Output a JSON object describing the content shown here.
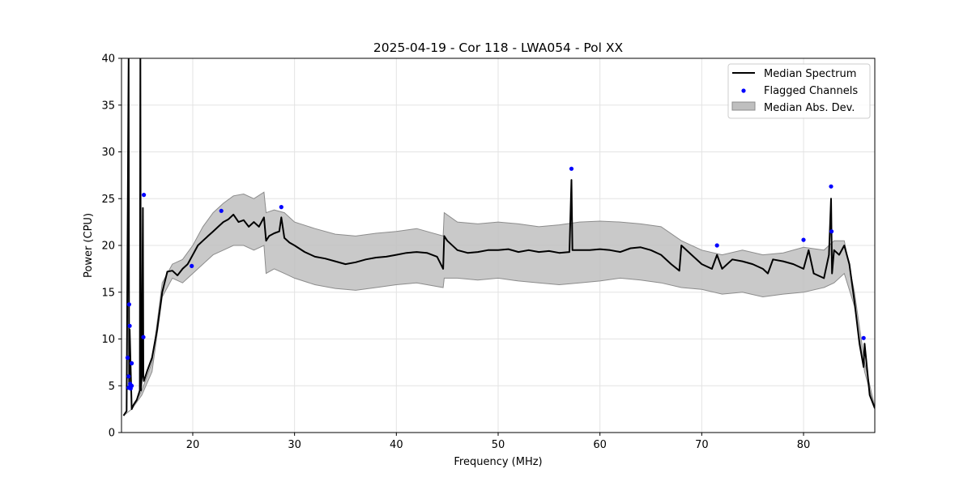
{
  "chart_data": {
    "type": "line",
    "title": "2025-04-19 - Cor 118 - LWA054 - Pol XX",
    "xlabel": "Frequency (MHz)",
    "ylabel": "Power (CPU)",
    "xlim": [
      13,
      87
    ],
    "ylim": [
      0,
      40
    ],
    "xticks": [
      20,
      30,
      40,
      50,
      60,
      70,
      80
    ],
    "yticks": [
      0,
      5,
      10,
      15,
      20,
      25,
      30,
      35,
      40
    ],
    "grid": true,
    "legend_position": "top-right",
    "legend": [
      "Median Spectrum",
      "Flagged Channels",
      "Median Abs. Dev."
    ],
    "colors": {
      "median": "#000000",
      "flagged": "#0000ff",
      "band_fill": "#bfbfbf",
      "band_edge": "#8c8c8c"
    },
    "series": [
      {
        "name": "Median Spectrum",
        "x": [
          13.2,
          13.5,
          13.7,
          13.75,
          13.8,
          14.0,
          14.2,
          14.5,
          14.8,
          14.85,
          14.9,
          15.0,
          15.1,
          15.15,
          15.2,
          15.5,
          16.0,
          16.5,
          17.0,
          17.5,
          18.0,
          18.5,
          19.0,
          19.5,
          20.0,
          20.5,
          21.0,
          21.5,
          22.0,
          22.5,
          23.0,
          23.5,
          24.0,
          24.5,
          25.0,
          25.5,
          26.0,
          26.5,
          27.0,
          27.2,
          27.5,
          28.0,
          28.5,
          28.7,
          29.0,
          29.5,
          30.0,
          31.0,
          32.0,
          33.0,
          34.0,
          35.0,
          36.0,
          37.0,
          38.0,
          39.0,
          40.0,
          41.0,
          42.0,
          43.0,
          44.0,
          44.6,
          44.7,
          45.0,
          46.0,
          47.0,
          48.0,
          49.0,
          50.0,
          51.0,
          52.0,
          53.0,
          54.0,
          55.0,
          56.0,
          57.0,
          57.2,
          57.3,
          58.0,
          59.0,
          60.0,
          61.0,
          62.0,
          63.0,
          64.0,
          65.0,
          66.0,
          67.0,
          67.8,
          68.0,
          69.0,
          70.0,
          71.0,
          71.5,
          72.0,
          73.0,
          74.0,
          75.0,
          76.0,
          76.5,
          77.0,
          78.0,
          79.0,
          80.0,
          80.5,
          81.0,
          82.0,
          82.5,
          82.7,
          82.8,
          83.0,
          83.5,
          84.0,
          84.5,
          85.0,
          85.5,
          85.9,
          86.0,
          86.5,
          87.0
        ],
        "y": [
          1.8,
          2.3,
          40,
          5.0,
          11,
          2.5,
          3.0,
          3.5,
          4.5,
          40,
          4.5,
          6.0,
          24,
          6.0,
          5.5,
          6.5,
          8.0,
          11.0,
          15.0,
          17.2,
          17.3,
          16.8,
          17.5,
          18.0,
          19.0,
          20.0,
          20.5,
          21.0,
          21.5,
          22.0,
          22.5,
          22.8,
          23.3,
          22.5,
          22.7,
          22.0,
          22.5,
          22.0,
          23.0,
          20.5,
          21.0,
          21.3,
          21.5,
          23.0,
          20.8,
          20.3,
          20.0,
          19.3,
          18.8,
          18.6,
          18.3,
          18.0,
          18.2,
          18.5,
          18.7,
          18.8,
          19.0,
          19.2,
          19.3,
          19.2,
          18.8,
          17.5,
          21.0,
          20.5,
          19.5,
          19.2,
          19.3,
          19.5,
          19.5,
          19.6,
          19.3,
          19.5,
          19.3,
          19.4,
          19.2,
          19.3,
          27.0,
          19.5,
          19.5,
          19.5,
          19.6,
          19.5,
          19.3,
          19.7,
          19.8,
          19.5,
          19.0,
          18.0,
          17.3,
          20.0,
          19.0,
          18.0,
          17.5,
          19.0,
          17.5,
          18.5,
          18.3,
          18.0,
          17.5,
          17.0,
          18.5,
          18.3,
          18.0,
          17.5,
          19.5,
          17.0,
          16.5,
          19.0,
          25.0,
          17.0,
          19.5,
          19.0,
          20.0,
          18.0,
          14.0,
          9.5,
          7.0,
          9.5,
          4.0,
          2.6
        ]
      },
      {
        "name": "Median Abs. Dev.",
        "x": [
          13.2,
          14.0,
          15.0,
          16.0,
          17.0,
          18.0,
          19.0,
          20.0,
          21.0,
          22.0,
          23.0,
          24.0,
          25.0,
          26.0,
          27.0,
          27.2,
          28.0,
          29.0,
          30.0,
          32.0,
          34.0,
          36.0,
          38.0,
          40.0,
          42.0,
          44.6,
          44.7,
          46.0,
          48.0,
          50.0,
          52.0,
          54.0,
          56.0,
          58.0,
          60.0,
          62.0,
          64.0,
          66.0,
          68.0,
          70.0,
          72.0,
          74.0,
          76.0,
          78.0,
          80.0,
          82.0,
          83.0,
          84.0,
          85.0,
          86.0,
          87.0
        ],
        "lower": [
          1.8,
          2.5,
          4.0,
          6.5,
          14.5,
          16.5,
          16.0,
          17.0,
          18.0,
          19.0,
          19.5,
          20.0,
          20.0,
          19.5,
          20.0,
          17.0,
          17.5,
          17.0,
          16.5,
          15.8,
          15.4,
          15.2,
          15.5,
          15.8,
          16.0,
          15.5,
          16.5,
          16.5,
          16.3,
          16.5,
          16.2,
          16.0,
          15.8,
          16.0,
          16.2,
          16.5,
          16.3,
          16.0,
          15.5,
          15.3,
          14.8,
          15.0,
          14.5,
          14.8,
          15.0,
          15.5,
          16.0,
          17.0,
          13.5,
          6.5,
          2.5
        ],
        "upper": [
          1.8,
          2.5,
          4.5,
          7.5,
          16.0,
          18.0,
          18.5,
          20.0,
          22.0,
          23.5,
          24.5,
          25.3,
          25.5,
          25.0,
          25.7,
          23.5,
          23.8,
          23.5,
          22.5,
          21.8,
          21.2,
          21.0,
          21.3,
          21.5,
          21.8,
          21.0,
          23.5,
          22.5,
          22.3,
          22.5,
          22.3,
          22.0,
          22.2,
          22.5,
          22.6,
          22.5,
          22.3,
          22.0,
          20.5,
          19.5,
          19.0,
          19.5,
          19.0,
          19.2,
          19.8,
          19.5,
          20.5,
          20.5,
          15.0,
          7.5,
          2.7
        ]
      },
      {
        "name": "Flagged Channels",
        "x": [
          13.6,
          13.7,
          13.75,
          13.8,
          13.85,
          13.9,
          14.0,
          14.0,
          13.7,
          15.2,
          15.15,
          19.9,
          22.8,
          28.7,
          57.2,
          71.5,
          80.0,
          82.7,
          82.75,
          85.9
        ],
        "y": [
          8.0,
          6.0,
          13.7,
          11.4,
          5.2,
          4.7,
          7.4,
          5.0,
          4.8,
          25.4,
          10.2,
          17.8,
          23.7,
          24.1,
          28.2,
          20.0,
          20.6,
          26.3,
          21.5,
          10.1
        ]
      }
    ]
  }
}
